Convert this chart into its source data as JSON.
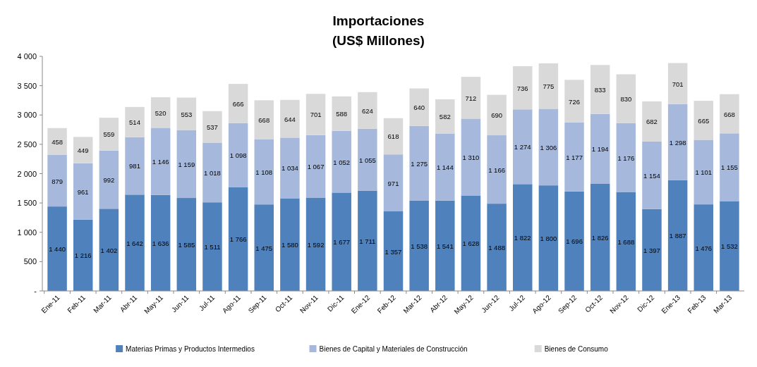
{
  "chart_data": {
    "type": "bar",
    "stacked": true,
    "title": "Importaciones",
    "subtitle": "(US$ Millones)",
    "categories": [
      "Ene-11",
      "Feb-11",
      "Mar-11",
      "Abr-11",
      "May-11",
      "Jun-11",
      "Jul-11",
      "Ago-11",
      "Sep-11",
      "Oct-11",
      "Nov-11",
      "Dic-11",
      "Ene-12",
      "Feb-12",
      "Mar-12",
      "Abr-12",
      "May-12",
      "Jun-12",
      "Jul-12",
      "Ago-12",
      "Sep-12",
      "Oct-12",
      "Nov-12",
      "Dic-12",
      "Ene-13",
      "Feb-13",
      "Mar-13"
    ],
    "series": [
      {
        "name": "Materias Primas y Productos Intermedios",
        "color": "#4f81bd",
        "values": [
          1440,
          1216,
          1402,
          1642,
          1636,
          1585,
          1511,
          1766,
          1475,
          1580,
          1592,
          1677,
          1711,
          1357,
          1538,
          1541,
          1628,
          1488,
          1822,
          1800,
          1696,
          1826,
          1688,
          1397,
          1887,
          1476,
          1532
        ]
      },
      {
        "name": "Bienes de Capital  y Materiales de Construcción",
        "color": "#a6b9dc",
        "values": [
          879,
          961,
          992,
          981,
          1146,
          1159,
          1018,
          1098,
          1108,
          1034,
          1067,
          1052,
          1055,
          971,
          1275,
          1144,
          1310,
          1166,
          1274,
          1306,
          1177,
          1194,
          1176,
          1154,
          1298,
          1101,
          1155
        ]
      },
      {
        "name": "Bienes de Consumo",
        "color": "#d9d9d9",
        "values": [
          458,
          449,
          559,
          514,
          520,
          553,
          537,
          666,
          668,
          644,
          701,
          588,
          624,
          618,
          640,
          582,
          712,
          690,
          736,
          775,
          726,
          833,
          830,
          682,
          701,
          665,
          668
        ]
      }
    ],
    "ylim": [
      0,
      4000
    ],
    "yticks": [
      {
        "value": 0,
        "label": "-"
      },
      500,
      {
        "value": 1000,
        "label": "1 000"
      },
      {
        "value": 1500,
        "label": "1 500"
      },
      {
        "value": 2000,
        "label": "2 000"
      },
      {
        "value": 2500,
        "label": "2 500"
      },
      {
        "value": 3000,
        "label": "3 000"
      },
      {
        "value": 3500,
        "label": "3 500"
      },
      {
        "value": 4000,
        "label": "4 000"
      }
    ],
    "data_labels": true,
    "grid": false,
    "legend": "bottom"
  }
}
